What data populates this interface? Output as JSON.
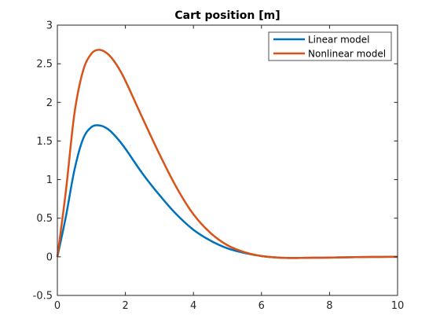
{
  "chart_data": {
    "type": "line",
    "title": "Cart position [m]",
    "xlabel": "",
    "ylabel": "",
    "xlim": [
      0,
      10
    ],
    "ylim": [
      -0.5,
      3
    ],
    "xticks": [
      0,
      2,
      4,
      6,
      8,
      10
    ],
    "xtick_labels": [
      "0",
      "2",
      "4",
      "6",
      "8",
      "10"
    ],
    "yticks": [
      -0.5,
      0,
      0.5,
      1,
      1.5,
      2,
      2.5,
      3
    ],
    "ytick_labels": [
      "-0.5",
      "0",
      "0.5",
      "1",
      "1.5",
      "2",
      "2.5",
      "3"
    ],
    "grid": false,
    "legend_position": "top-right",
    "series": [
      {
        "name": "Linear model",
        "color": "#0072BD",
        "x": [
          0,
          0.25,
          0.5,
          0.75,
          1.0,
          1.25,
          1.5,
          1.75,
          2.0,
          2.5,
          3.0,
          3.5,
          4.0,
          4.5,
          5.0,
          5.5,
          6.0,
          6.5,
          7.0,
          7.5,
          8.0,
          8.5,
          9.0,
          9.5,
          10.0
        ],
        "y": [
          0,
          0.52,
          1.12,
          1.52,
          1.68,
          1.7,
          1.65,
          1.54,
          1.4,
          1.08,
          0.8,
          0.55,
          0.35,
          0.21,
          0.11,
          0.05,
          0.01,
          -0.01,
          -0.015,
          -0.012,
          -0.01,
          -0.006,
          -0.003,
          -0.001,
          0
        ]
      },
      {
        "name": "Nonlinear model",
        "color": "#D95319",
        "x": [
          0,
          0.25,
          0.5,
          0.75,
          1.0,
          1.25,
          1.5,
          1.75,
          2.0,
          2.5,
          3.0,
          3.5,
          4.0,
          4.5,
          5.0,
          5.5,
          6.0,
          6.5,
          7.0,
          7.5,
          8.0,
          8.5,
          9.0,
          9.5,
          10.0
        ],
        "y": [
          0,
          0.85,
          1.85,
          2.4,
          2.63,
          2.68,
          2.62,
          2.48,
          2.28,
          1.8,
          1.33,
          0.9,
          0.55,
          0.31,
          0.15,
          0.06,
          0.01,
          -0.01,
          -0.015,
          -0.012,
          -0.01,
          -0.006,
          -0.003,
          -0.001,
          0
        ]
      }
    ]
  }
}
